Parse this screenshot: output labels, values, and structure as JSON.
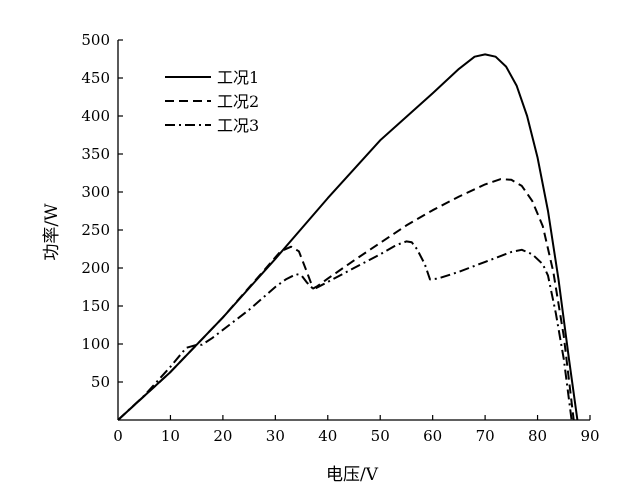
{
  "chart_data": {
    "type": "line",
    "title": "",
    "xlabel": "电压/V",
    "ylabel": "功率/W",
    "xlim": [
      0,
      90
    ],
    "ylim": [
      0,
      500
    ],
    "xticks": [
      0,
      10,
      20,
      30,
      40,
      50,
      60,
      70,
      80,
      90
    ],
    "yticks": [
      50,
      100,
      150,
      200,
      250,
      300,
      350,
      400,
      450,
      500
    ],
    "grid": false,
    "legend_position": "top-left",
    "series": [
      {
        "name": "工况1",
        "dash": "solid",
        "color": "#000000",
        "points": [
          [
            0,
            0
          ],
          [
            10,
            63
          ],
          [
            20,
            135
          ],
          [
            30,
            212
          ],
          [
            40,
            292
          ],
          [
            50,
            368
          ],
          [
            60,
            430
          ],
          [
            65,
            462
          ],
          [
            68,
            478
          ],
          [
            70,
            481
          ],
          [
            72,
            478
          ],
          [
            74,
            465
          ],
          [
            76,
            440
          ],
          [
            78,
            400
          ],
          [
            80,
            345
          ],
          [
            82,
            275
          ],
          [
            84,
            185
          ],
          [
            86,
            80
          ],
          [
            87.6,
            0
          ]
        ]
      },
      {
        "name": "工况2",
        "dash": "dashed",
        "color": "#000000",
        "points": [
          [
            0,
            0
          ],
          [
            10,
            63
          ],
          [
            20,
            135
          ],
          [
            28,
            198
          ],
          [
            31,
            222
          ],
          [
            33,
            228
          ],
          [
            34.5,
            222
          ],
          [
            36,
            195
          ],
          [
            37.2,
            173
          ],
          [
            38,
            176
          ],
          [
            40,
            186
          ],
          [
            45,
            210
          ],
          [
            50,
            233
          ],
          [
            55,
            256
          ],
          [
            60,
            276
          ],
          [
            65,
            294
          ],
          [
            70,
            310
          ],
          [
            73,
            317
          ],
          [
            75,
            316
          ],
          [
            77,
            308
          ],
          [
            79,
            288
          ],
          [
            81,
            255
          ],
          [
            83,
            195
          ],
          [
            85,
            110
          ],
          [
            86.9,
            0
          ]
        ]
      },
      {
        "name": "工况3",
        "dash": "dashdot",
        "color": "#000000",
        "points": [
          [
            0,
            0
          ],
          [
            5,
            32
          ],
          [
            10,
            70
          ],
          [
            13,
            95
          ],
          [
            15,
            99
          ],
          [
            16,
            99
          ],
          [
            18,
            108
          ],
          [
            25,
            145
          ],
          [
            30,
            175
          ],
          [
            32,
            185
          ],
          [
            34,
            192
          ],
          [
            35,
            190
          ],
          [
            36,
            181
          ],
          [
            37.3,
            172
          ],
          [
            39,
            178
          ],
          [
            45,
            200
          ],
          [
            50,
            218
          ],
          [
            53,
            230
          ],
          [
            55,
            235
          ],
          [
            56,
            234
          ],
          [
            57,
            225
          ],
          [
            58.5,
            205
          ],
          [
            59.5,
            185
          ],
          [
            61,
            186
          ],
          [
            65,
            195
          ],
          [
            70,
            208
          ],
          [
            75,
            221
          ],
          [
            77,
            224
          ],
          [
            79,
            218
          ],
          [
            81,
            205
          ],
          [
            82,
            190
          ],
          [
            83.5,
            140
          ],
          [
            85,
            80
          ],
          [
            86.5,
            0
          ]
        ]
      }
    ]
  }
}
